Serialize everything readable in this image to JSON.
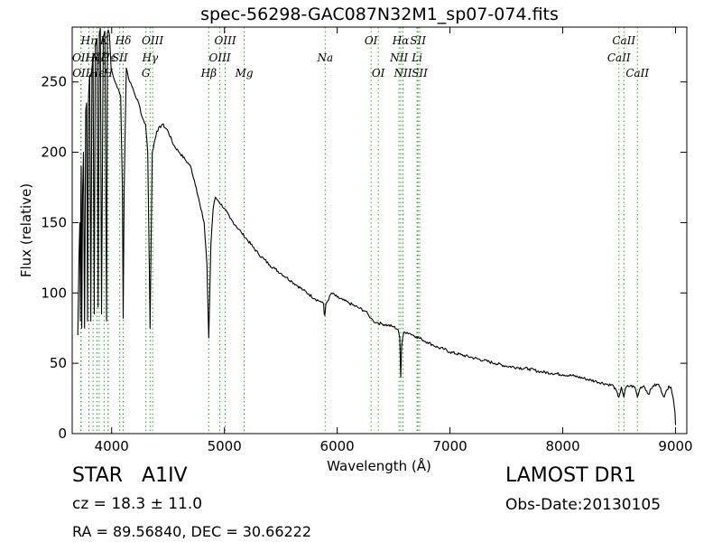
{
  "chart_data": {
    "type": "line",
    "title": "spec-56298-GAC087N32M1_sp07-074.fits",
    "xlabel": "Wavelength (Å)",
    "ylabel": "Flux (relative)",
    "xlim": [
      3650,
      9100
    ],
    "ylim": [
      0,
      289
    ],
    "xticks": [
      4000,
      5000,
      6000,
      7000,
      8000,
      9000
    ],
    "yticks": [
      0,
      50,
      100,
      150,
      200,
      250
    ],
    "grid": false,
    "series": [
      {
        "color": "#000000",
        "x": [
          3700,
          3710,
          3718,
          3722,
          3726,
          3730,
          3735,
          3742,
          3750,
          3760,
          3770,
          3778,
          3786,
          3795,
          3805,
          3815,
          3825,
          3835,
          3845,
          3855,
          3870,
          3880,
          3890,
          3900,
          3910,
          3925,
          3940,
          3955,
          3962,
          3970,
          3980,
          3995,
          4010,
          4030,
          4060,
          4080,
          4095,
          4102,
          4110,
          4130,
          4160,
          4190,
          4210,
          4240,
          4270,
          4300,
          4320,
          4335,
          4341,
          4347,
          4360,
          4400,
          4450,
          4500,
          4550,
          4600,
          4650,
          4700,
          4750,
          4790,
          4820,
          4845,
          4855,
          4861,
          4867,
          4880,
          4900,
          4920,
          4950,
          5000,
          5050,
          5100,
          5150,
          5200,
          5250,
          5300,
          5350,
          5400,
          5450,
          5500,
          5550,
          5600,
          5650,
          5700,
          5750,
          5800,
          5850,
          5880,
          5885,
          5890,
          5895,
          5900,
          5950,
          6000,
          6050,
          6100,
          6150,
          6200,
          6250,
          6280,
          6300,
          6320,
          6350,
          6400,
          6450,
          6500,
          6540,
          6555,
          6563,
          6571,
          6590,
          6620,
          6650,
          6700,
          6750,
          6800,
          6850,
          6900,
          6950,
          7000,
          7100,
          7200,
          7300,
          7400,
          7500,
          7600,
          7700,
          7800,
          7900,
          8000,
          8100,
          8200,
          8300,
          8400,
          8450,
          8498,
          8520,
          8542,
          8560,
          8600,
          8640,
          8662,
          8690,
          8720,
          8760,
          8800,
          8850,
          8900,
          8940,
          8960,
          8980,
          8995,
          9000
        ],
        "y": [
          70,
          125,
          150,
          80,
          160,
          190,
          75,
          170,
          200,
          75,
          230,
          235,
          80,
          240,
          255,
          80,
          260,
          268,
          85,
          275,
          281,
          90,
          284,
          288,
          85,
          282,
          286,
          80,
          285,
          287,
          284,
          260,
          255,
          250,
          245,
          240,
          175,
          82,
          170,
          260,
          250,
          245,
          240,
          235,
          225,
          220,
          200,
          110,
          75,
          120,
          200,
          215,
          220,
          215,
          205,
          200,
          195,
          190,
          175,
          160,
          150,
          120,
          85,
          68,
          90,
          135,
          160,
          168,
          165,
          160,
          153,
          148,
          143,
          138,
          133,
          128,
          124,
          120,
          117,
          114,
          111,
          108,
          105,
          102,
          99,
          96,
          94,
          92,
          85,
          84,
          88,
          92,
          100,
          97,
          95,
          93,
          91,
          89,
          87,
          84,
          82,
          80,
          79,
          78,
          77,
          76,
          74,
          68,
          40,
          62,
          72,
          72,
          71,
          69,
          67,
          65,
          63,
          61,
          60,
          58,
          56,
          54,
          52,
          50,
          48,
          47,
          46,
          44,
          43,
          42,
          41,
          39,
          37,
          35,
          34,
          26,
          33,
          26,
          33,
          34,
          33,
          26,
          33,
          34,
          28,
          34,
          35,
          26,
          34,
          33,
          25,
          15,
          6
        ]
      }
    ],
    "line_markers": [
      {
        "x": 3727,
        "label": "OII",
        "row": 2
      },
      {
        "x": 3729,
        "label": "OII",
        "row": 3
      },
      {
        "x": 3798,
        "label": "Hη",
        "row": 1
      },
      {
        "x": 3835,
        "label": "Hζ",
        "row": 2
      },
      {
        "x": 3869,
        "label": "Hε",
        "row": 3
      },
      {
        "x": 3889,
        "label": "Hζ",
        "row": 2
      },
      {
        "x": 3933,
        "label": "K",
        "row": 1
      },
      {
        "x": 3968,
        "label": "H",
        "row": 3
      },
      {
        "x": 3970,
        "label": "Hε",
        "row": 2
      },
      {
        "x": 4072,
        "label": "SII",
        "row": 2
      },
      {
        "x": 4102,
        "label": "Hδ",
        "row": 1
      },
      {
        "x": 4304,
        "label": "G",
        "row": 3
      },
      {
        "x": 4341,
        "label": "Hγ",
        "row": 2
      },
      {
        "x": 4363,
        "label": "OIII",
        "row": 1
      },
      {
        "x": 4861,
        "label": "Hβ",
        "row": 3
      },
      {
        "x": 4959,
        "label": "OIII",
        "row": 2
      },
      {
        "x": 5007,
        "label": "OIII",
        "row": 1
      },
      {
        "x": 5175,
        "label": "Mg",
        "row": 3
      },
      {
        "x": 5893,
        "label": "Na",
        "row": 2
      },
      {
        "x": 6300,
        "label": "OI",
        "row": 1
      },
      {
        "x": 6364,
        "label": "OI",
        "row": 3
      },
      {
        "x": 6548,
        "label": "NII",
        "row": 2
      },
      {
        "x": 6563,
        "label": "Hα",
        "row": 1
      },
      {
        "x": 6583,
        "label": "NII",
        "row": 3
      },
      {
        "x": 6708,
        "label": "Li",
        "row": 2
      },
      {
        "x": 6716,
        "label": "SII",
        "row": 1
      },
      {
        "x": 6731,
        "label": "SII",
        "row": 3
      },
      {
        "x": 8498,
        "label": "CaII",
        "row": 2
      },
      {
        "x": 8542,
        "label": "CaII",
        "row": 1
      },
      {
        "x": 8662,
        "label": "CaII",
        "row": 3
      }
    ],
    "marker_color": "#2ca02c"
  },
  "info": {
    "object_class": "STAR",
    "subclass": "A1IV",
    "survey": "LAMOST DR1",
    "redshift": "cz = 18.3 ± 11.0",
    "obs_date": "Obs-Date:20130105",
    "coords": "RA = 89.56840, DEC = 30.66222"
  }
}
